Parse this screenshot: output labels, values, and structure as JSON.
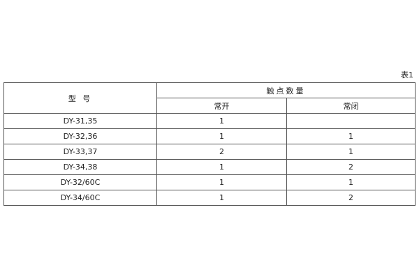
{
  "caption": "表1",
  "header": {
    "model": "型 号",
    "contacts": "触点数量",
    "normally_open": "常开",
    "normally_closed": "常闭"
  },
  "rows": [
    {
      "model": "DY-31,35",
      "open": "1",
      "closed": ""
    },
    {
      "model": "DY-32,36",
      "open": "1",
      "closed": "1"
    },
    {
      "model": "DY-33,37",
      "open": "2",
      "closed": "1"
    },
    {
      "model": "DY-34,38",
      "open": "1",
      "closed": "2"
    },
    {
      "model": "DY-32/60C",
      "open": "1",
      "closed": "1"
    },
    {
      "model": "DY-34/60C",
      "open": "1",
      "closed": "2"
    }
  ]
}
